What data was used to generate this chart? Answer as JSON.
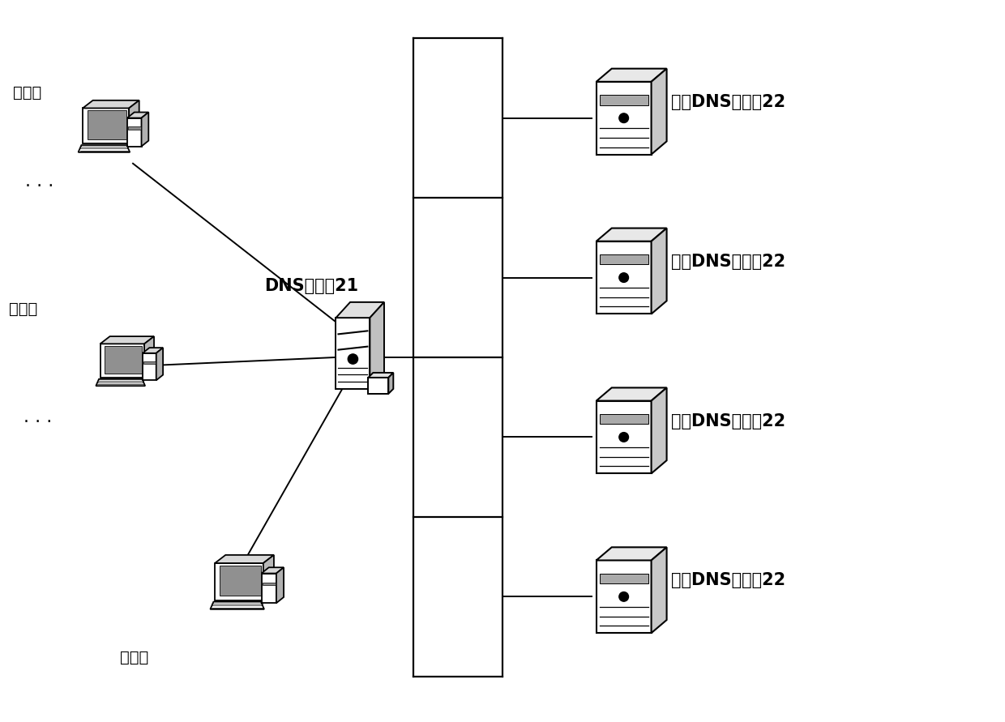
{
  "bg_color": "#ffffff",
  "text_color": "#000000",
  "label_client_top": "客户端",
  "label_client_mid": "客户端",
  "label_client_bottom": "客户端",
  "label_dns_server": "DNS服务器21",
  "label_forward_dns": "转发DNS服务器22",
  "dots": "· · ·",
  "fig_width": 12.4,
  "fig_height": 8.91,
  "font_size_label": 14,
  "font_size_dns": 15
}
